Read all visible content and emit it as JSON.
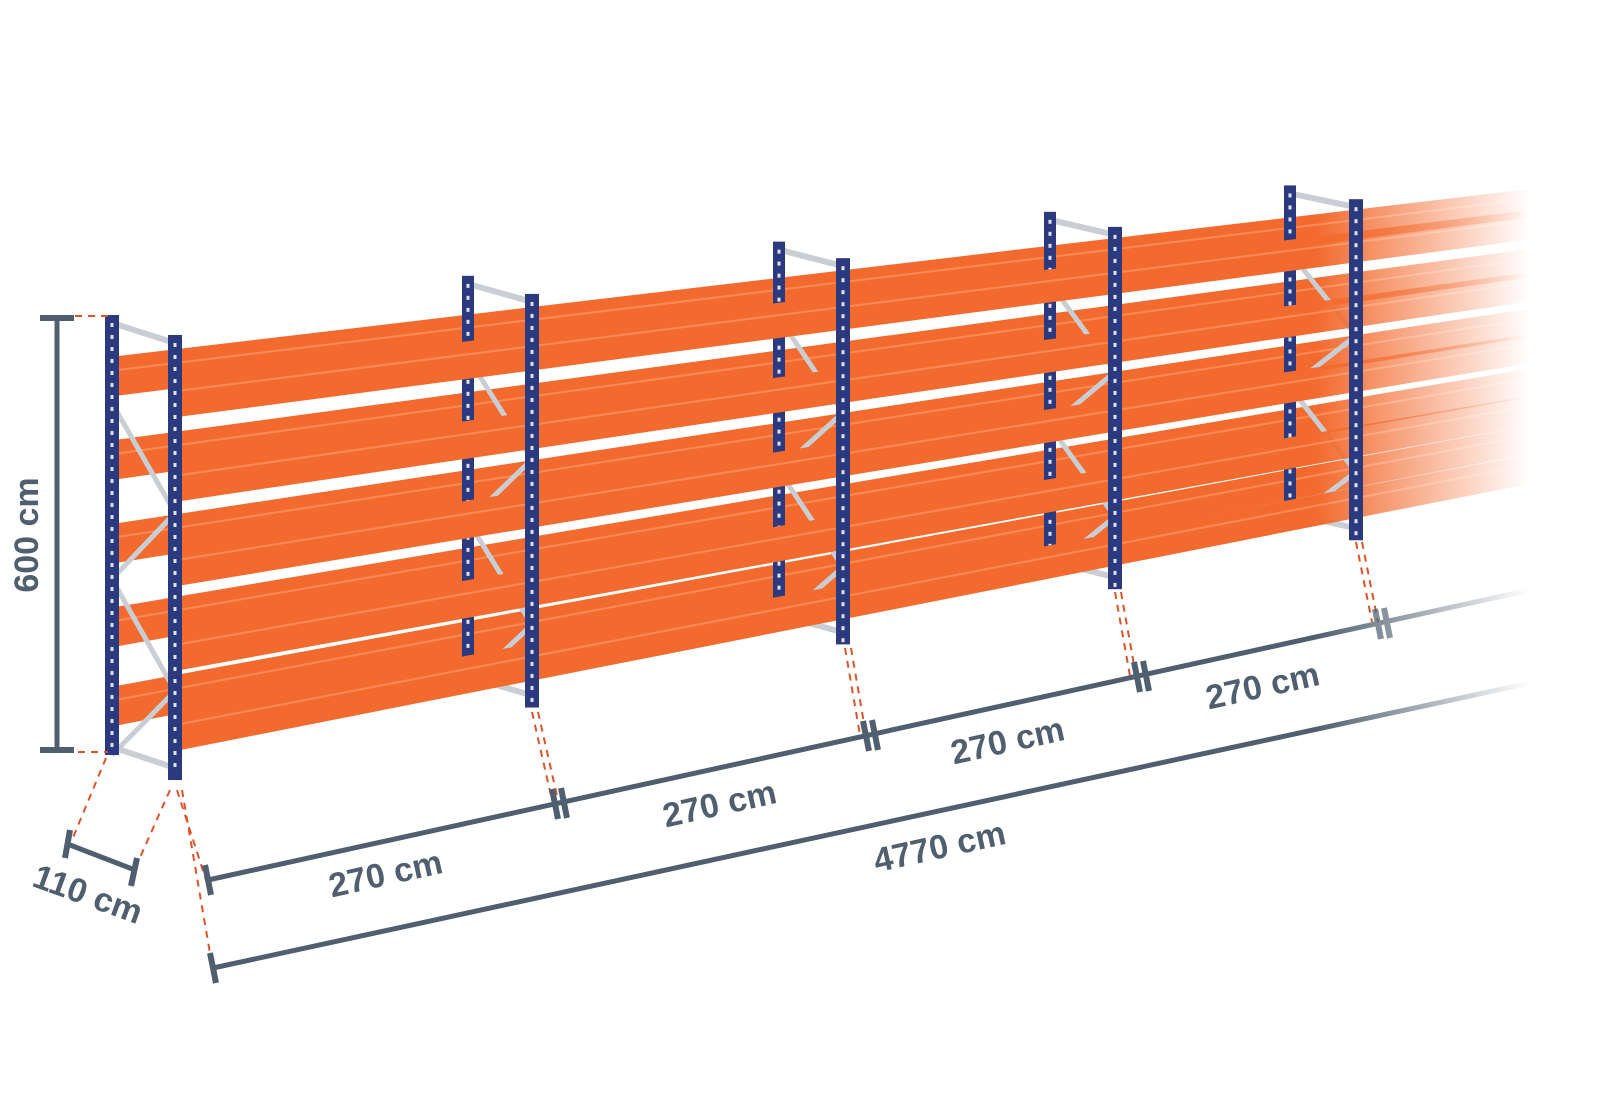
{
  "colors": {
    "upright": "#2b3a7e",
    "beam": "#f26a2e",
    "brace": "#c9ced4",
    "dimension": "#4f5f70",
    "guide": "#e0522a"
  },
  "dimensions": {
    "height": "600 cm",
    "depth": "110 cm",
    "bays": [
      "270 cm",
      "270 cm",
      "270 cm",
      "270 cm"
    ],
    "total_length": "4770 cm"
  }
}
